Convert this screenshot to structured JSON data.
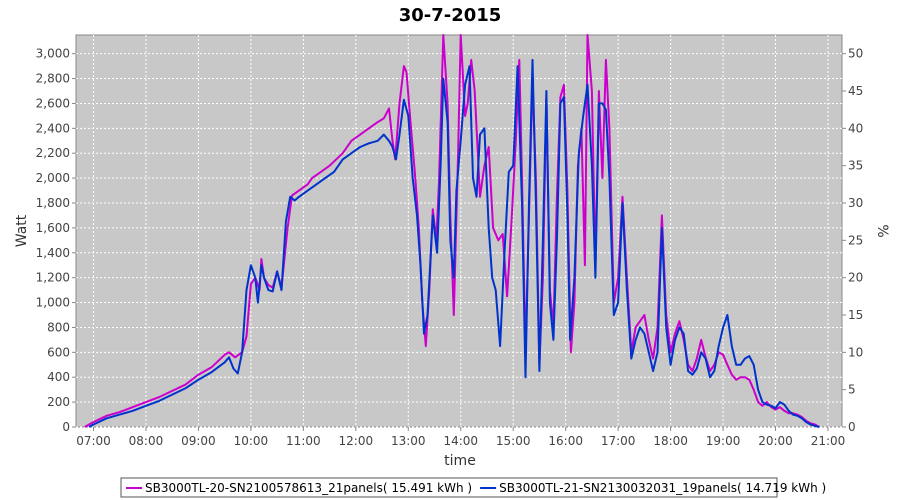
{
  "chart_data": {
    "type": "line",
    "title": "30-7-2015",
    "xlabel": "time",
    "ylabel": "Watt",
    "y2label": "%",
    "xlim": [
      "06:40",
      "21:16"
    ],
    "ylim": [
      0,
      3150
    ],
    "y2lim": [
      0,
      52.5
    ],
    "x_ticks": [
      "07:00",
      "08:00",
      "09:00",
      "10:00",
      "11:00",
      "12:00",
      "13:00",
      "14:00",
      "15:00",
      "16:00",
      "17:00",
      "18:00",
      "19:00",
      "20:00",
      "21:00"
    ],
    "y_ticks": [
      "0",
      "200",
      "400",
      "600",
      "800",
      "1,000",
      "1,200",
      "1,400",
      "1,600",
      "1,800",
      "2,000",
      "2,200",
      "2,400",
      "2,600",
      "2,800",
      "3,000"
    ],
    "y2_ticks": [
      "0",
      "5",
      "10",
      "15",
      "20",
      "25",
      "30",
      "35",
      "40",
      "45",
      "50"
    ],
    "grid": true,
    "legend_position": "bottom",
    "colors": {
      "plot_background": "#c8c8c8",
      "grid": "#ffffff"
    },
    "series": [
      {
        "name": "SB3000TL-20-SN2100578613_21panels( 15.491 kWh )",
        "color": "#cc00cc",
        "points": [
          [
            "06:50",
            0
          ],
          [
            "07:00",
            40
          ],
          [
            "07:15",
            90
          ],
          [
            "07:30",
            120
          ],
          [
            "07:45",
            160
          ],
          [
            "08:00",
            200
          ],
          [
            "08:15",
            240
          ],
          [
            "08:30",
            290
          ],
          [
            "08:45",
            340
          ],
          [
            "09:00",
            420
          ],
          [
            "09:15",
            480
          ],
          [
            "09:30",
            580
          ],
          [
            "09:35",
            600
          ],
          [
            "09:42",
            560
          ],
          [
            "09:50",
            600
          ],
          [
            "09:55",
            730
          ],
          [
            "10:00",
            1150
          ],
          [
            "10:05",
            1200
          ],
          [
            "10:10",
            1100
          ],
          [
            "10:12",
            1350
          ],
          [
            "10:15",
            1200
          ],
          [
            "10:20",
            1140
          ],
          [
            "10:25",
            1120
          ],
          [
            "10:30",
            1250
          ],
          [
            "10:35",
            1120
          ],
          [
            "10:42",
            1600
          ],
          [
            "10:47",
            1860
          ],
          [
            "10:55",
            1900
          ],
          [
            "11:05",
            1950
          ],
          [
            "11:10",
            2000
          ],
          [
            "11:20",
            2050
          ],
          [
            "11:30",
            2100
          ],
          [
            "11:45",
            2200
          ],
          [
            "11:55",
            2300
          ],
          [
            "12:05",
            2350
          ],
          [
            "12:15",
            2400
          ],
          [
            "12:25",
            2450
          ],
          [
            "12:32",
            2480
          ],
          [
            "12:38",
            2560
          ],
          [
            "12:42",
            2300
          ],
          [
            "12:45",
            2150
          ],
          [
            "12:50",
            2600
          ],
          [
            "12:55",
            2900
          ],
          [
            "12:58",
            2850
          ],
          [
            "13:02",
            2500
          ],
          [
            "13:08",
            2000
          ],
          [
            "13:12",
            1600
          ],
          [
            "13:16",
            1000
          ],
          [
            "13:20",
            650
          ],
          [
            "13:24",
            1100
          ],
          [
            "13:28",
            1750
          ],
          [
            "13:32",
            1500
          ],
          [
            "13:35",
            1950
          ],
          [
            "13:40",
            3150
          ],
          [
            "13:45",
            2600
          ],
          [
            "13:48",
            1700
          ],
          [
            "13:52",
            900
          ],
          [
            "13:57",
            2200
          ],
          [
            "14:00",
            3150
          ],
          [
            "14:05",
            2500
          ],
          [
            "14:08",
            2600
          ],
          [
            "14:12",
            2950
          ],
          [
            "14:16",
            2700
          ],
          [
            "14:22",
            1850
          ],
          [
            "14:27",
            2100
          ],
          [
            "14:32",
            2250
          ],
          [
            "14:37",
            1600
          ],
          [
            "14:43",
            1500
          ],
          [
            "14:48",
            1550
          ],
          [
            "14:53",
            1050
          ],
          [
            "14:58",
            1650
          ],
          [
            "15:03",
            2300
          ],
          [
            "15:07",
            2950
          ],
          [
            "15:10",
            2000
          ],
          [
            "15:14",
            600
          ],
          [
            "15:18",
            1700
          ],
          [
            "15:22",
            2800
          ],
          [
            "15:26",
            2000
          ],
          [
            "15:30",
            500
          ],
          [
            "15:34",
            1200
          ],
          [
            "15:38",
            2650
          ],
          [
            "15:42",
            1100
          ],
          [
            "15:46",
            800
          ],
          [
            "15:50",
            1850
          ],
          [
            "15:54",
            2650
          ],
          [
            "15:58",
            2750
          ],
          [
            "16:02",
            1900
          ],
          [
            "16:06",
            600
          ],
          [
            "16:10",
            1000
          ],
          [
            "16:14",
            2100
          ],
          [
            "16:18",
            2400
          ],
          [
            "16:22",
            1300
          ],
          [
            "16:25",
            3150
          ],
          [
            "16:30",
            2700
          ],
          [
            "16:34",
            1300
          ],
          [
            "16:38",
            2700
          ],
          [
            "16:42",
            2000
          ],
          [
            "16:46",
            2950
          ],
          [
            "16:50",
            2400
          ],
          [
            "16:55",
            1000
          ],
          [
            "17:00",
            1200
          ],
          [
            "17:05",
            1850
          ],
          [
            "17:10",
            1200
          ],
          [
            "17:15",
            600
          ],
          [
            "17:20",
            800
          ],
          [
            "17:25",
            850
          ],
          [
            "17:30",
            900
          ],
          [
            "17:35",
            700
          ],
          [
            "17:40",
            550
          ],
          [
            "17:45",
            800
          ],
          [
            "17:50",
            1700
          ],
          [
            "17:55",
            900
          ],
          [
            "18:00",
            600
          ],
          [
            "18:05",
            750
          ],
          [
            "18:10",
            850
          ],
          [
            "18:15",
            700
          ],
          [
            "18:20",
            500
          ],
          [
            "18:25",
            450
          ],
          [
            "18:30",
            550
          ],
          [
            "18:35",
            700
          ],
          [
            "18:40",
            560
          ],
          [
            "18:45",
            450
          ],
          [
            "18:50",
            500
          ],
          [
            "18:55",
            600
          ],
          [
            "19:00",
            580
          ],
          [
            "19:05",
            500
          ],
          [
            "19:10",
            420
          ],
          [
            "19:15",
            380
          ],
          [
            "19:20",
            400
          ],
          [
            "19:25",
            400
          ],
          [
            "19:30",
            380
          ],
          [
            "19:35",
            300
          ],
          [
            "19:40",
            200
          ],
          [
            "19:45",
            170
          ],
          [
            "19:50",
            200
          ],
          [
            "19:55",
            160
          ],
          [
            "20:00",
            140
          ],
          [
            "20:05",
            160
          ],
          [
            "20:10",
            130
          ],
          [
            "20:15",
            110
          ],
          [
            "20:20",
            110
          ],
          [
            "20:25",
            100
          ],
          [
            "20:30",
            80
          ],
          [
            "20:35",
            50
          ],
          [
            "20:40",
            30
          ],
          [
            "20:45",
            20
          ],
          [
            "20:50",
            0
          ]
        ]
      },
      {
        "name": "SB3000TL-21-SN2130032031_19panels( 14.719 kWh )",
        "color": "#0033cc",
        "points": [
          [
            "06:55",
            0
          ],
          [
            "07:00",
            20
          ],
          [
            "07:15",
            70
          ],
          [
            "07:30",
            100
          ],
          [
            "07:45",
            130
          ],
          [
            "08:00",
            170
          ],
          [
            "08:15",
            210
          ],
          [
            "08:30",
            260
          ],
          [
            "08:45",
            310
          ],
          [
            "09:00",
            380
          ],
          [
            "09:15",
            440
          ],
          [
            "09:30",
            520
          ],
          [
            "09:35",
            560
          ],
          [
            "09:40",
            470
          ],
          [
            "09:45",
            430
          ],
          [
            "09:50",
            600
          ],
          [
            "09:55",
            1100
          ],
          [
            "10:00",
            1300
          ],
          [
            "10:05",
            1200
          ],
          [
            "10:08",
            1000
          ],
          [
            "10:12",
            1300
          ],
          [
            "10:15",
            1200
          ],
          [
            "10:20",
            1100
          ],
          [
            "10:25",
            1090
          ],
          [
            "10:30",
            1250
          ],
          [
            "10:35",
            1100
          ],
          [
            "10:40",
            1650
          ],
          [
            "10:45",
            1850
          ],
          [
            "10:50",
            1820
          ],
          [
            "10:55",
            1850
          ],
          [
            "11:05",
            1900
          ],
          [
            "11:15",
            1950
          ],
          [
            "11:25",
            2000
          ],
          [
            "11:35",
            2050
          ],
          [
            "11:45",
            2150
          ],
          [
            "11:55",
            2200
          ],
          [
            "12:05",
            2250
          ],
          [
            "12:15",
            2280
          ],
          [
            "12:25",
            2300
          ],
          [
            "12:32",
            2350
          ],
          [
            "12:38",
            2300
          ],
          [
            "12:42",
            2250
          ],
          [
            "12:46",
            2150
          ],
          [
            "12:50",
            2350
          ],
          [
            "12:55",
            2630
          ],
          [
            "13:00",
            2500
          ],
          [
            "13:05",
            2000
          ],
          [
            "13:10",
            1700
          ],
          [
            "13:14",
            1300
          ],
          [
            "13:18",
            750
          ],
          [
            "13:22",
            900
          ],
          [
            "13:28",
            1700
          ],
          [
            "13:33",
            1400
          ],
          [
            "13:37",
            2100
          ],
          [
            "13:40",
            2800
          ],
          [
            "13:45",
            2450
          ],
          [
            "13:48",
            1500
          ],
          [
            "13:52",
            1200
          ],
          [
            "13:55",
            1900
          ],
          [
            "14:00",
            2300
          ],
          [
            "14:05",
            2750
          ],
          [
            "14:10",
            2900
          ],
          [
            "14:14",
            2000
          ],
          [
            "14:18",
            1850
          ],
          [
            "14:22",
            2350
          ],
          [
            "14:27",
            2400
          ],
          [
            "14:32",
            1600
          ],
          [
            "14:36",
            1200
          ],
          [
            "14:40",
            1100
          ],
          [
            "14:45",
            650
          ],
          [
            "14:50",
            1400
          ],
          [
            "14:55",
            2050
          ],
          [
            "15:00",
            2100
          ],
          [
            "15:05",
            2900
          ],
          [
            "15:10",
            1800
          ],
          [
            "15:14",
            400
          ],
          [
            "15:18",
            1800
          ],
          [
            "15:22",
            2950
          ],
          [
            "15:26",
            1800
          ],
          [
            "15:30",
            450
          ],
          [
            "15:34",
            1500
          ],
          [
            "15:38",
            2700
          ],
          [
            "15:42",
            1000
          ],
          [
            "15:46",
            700
          ],
          [
            "15:50",
            1500
          ],
          [
            "15:54",
            2600
          ],
          [
            "15:58",
            2650
          ],
          [
            "16:02",
            1700
          ],
          [
            "16:05",
            700
          ],
          [
            "16:10",
            1200
          ],
          [
            "16:15",
            2200
          ],
          [
            "16:20",
            2500
          ],
          [
            "16:25",
            2750
          ],
          [
            "16:30",
            2100
          ],
          [
            "16:34",
            1200
          ],
          [
            "16:38",
            2600
          ],
          [
            "16:42",
            2600
          ],
          [
            "16:46",
            2550
          ],
          [
            "16:50",
            2000
          ],
          [
            "16:55",
            900
          ],
          [
            "17:00",
            1000
          ],
          [
            "17:05",
            1800
          ],
          [
            "17:10",
            1100
          ],
          [
            "17:15",
            550
          ],
          [
            "17:20",
            700
          ],
          [
            "17:25",
            800
          ],
          [
            "17:30",
            750
          ],
          [
            "17:35",
            600
          ],
          [
            "17:40",
            450
          ],
          [
            "17:45",
            600
          ],
          [
            "17:50",
            1600
          ],
          [
            "17:55",
            800
          ],
          [
            "18:00",
            500
          ],
          [
            "18:05",
            700
          ],
          [
            "18:10",
            800
          ],
          [
            "18:15",
            750
          ],
          [
            "18:20",
            450
          ],
          [
            "18:25",
            420
          ],
          [
            "18:30",
            470
          ],
          [
            "18:35",
            600
          ],
          [
            "18:40",
            550
          ],
          [
            "18:45",
            400
          ],
          [
            "18:50",
            450
          ],
          [
            "18:55",
            650
          ],
          [
            "19:00",
            800
          ],
          [
            "19:05",
            900
          ],
          [
            "19:10",
            650
          ],
          [
            "19:15",
            500
          ],
          [
            "19:20",
            500
          ],
          [
            "19:25",
            550
          ],
          [
            "19:30",
            570
          ],
          [
            "19:35",
            500
          ],
          [
            "19:40",
            300
          ],
          [
            "19:45",
            200
          ],
          [
            "19:50",
            180
          ],
          [
            "19:55",
            170
          ],
          [
            "20:00",
            150
          ],
          [
            "20:05",
            200
          ],
          [
            "20:10",
            180
          ],
          [
            "20:15",
            130
          ],
          [
            "20:20",
            100
          ],
          [
            "20:25",
            90
          ],
          [
            "20:30",
            70
          ],
          [
            "20:35",
            40
          ],
          [
            "20:40",
            20
          ],
          [
            "20:45",
            10
          ],
          [
            "20:50",
            0
          ]
        ]
      }
    ]
  }
}
